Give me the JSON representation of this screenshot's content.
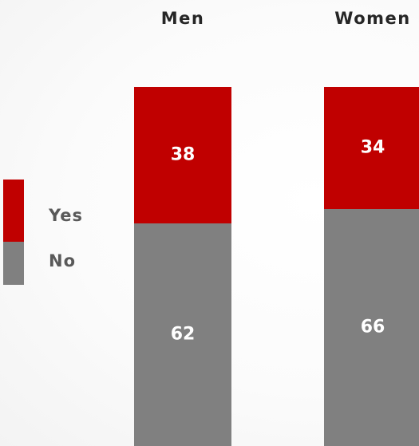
{
  "chart_data": {
    "type": "bar",
    "stacked": true,
    "categories": [
      "Men",
      "Women"
    ],
    "series": [
      {
        "name": "No",
        "values": [
          62,
          66
        ],
        "color": "#808080"
      },
      {
        "name": "Yes",
        "values": [
          38,
          34
        ],
        "color": "#c00000"
      }
    ],
    "ylim": [
      0,
      100
    ],
    "grid": false,
    "legend_position": "left",
    "legend": [
      {
        "label": "Yes",
        "color": "#c00000"
      },
      {
        "label": "No",
        "color": "#808080"
      }
    ]
  }
}
